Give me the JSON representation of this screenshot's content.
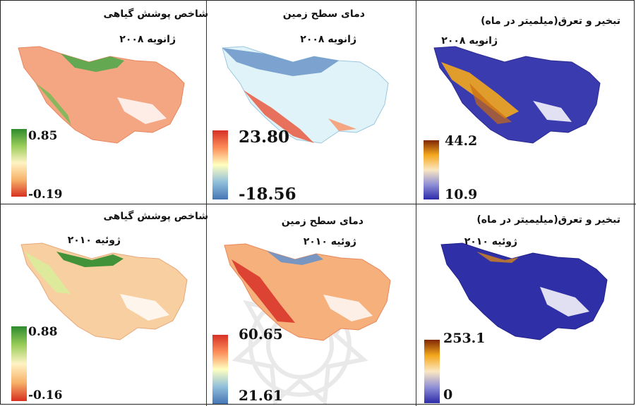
{
  "panels": [
    {
      "title": "شاخص پوشش گیاهی",
      "date": "ژانویه ۲۰۰۸",
      "legend_max": "0.85",
      "legend_min": "-0.19",
      "colormap": "ndvi",
      "variant": "ndvi_jan"
    },
    {
      "title": "دمای سطح زمین",
      "date": "ژانویه ۲۰۰۸",
      "legend_max": "23.80",
      "legend_min": "-18.56",
      "colormap": "lst",
      "variant": "lst_jan"
    },
    {
      "title": "تبخیر و تعرق(میلمیتر در ماه)",
      "date": "ژانویه ۲۰۰۸",
      "legend_max": "44.2",
      "legend_min": "10.9",
      "colormap": "et",
      "variant": "et_jan"
    },
    {
      "title": "شاخص پوشش گیاهی",
      "date": "ژوئیه ۲۰۱۰",
      "legend_max": "0.88",
      "legend_min": "-0.16",
      "colormap": "ndvi",
      "variant": "ndvi_jul"
    },
    {
      "title": "دمای سطح زمین",
      "date": "ژوئیه ۲۰۱۰",
      "legend_max": "60.65",
      "legend_min": "21.61",
      "colormap": "lst",
      "variant": "lst_jul"
    },
    {
      "title": "تبخیر و تعرق(میلیمیتر در ماه)",
      "date": "ژوئیه ۲۰۱۰",
      "legend_max": "253.1",
      "legend_min": "0",
      "colormap": "et",
      "variant": "et_jul"
    }
  ],
  "colors": {
    "ndvi_high": "#2e8b2e",
    "ndvi_mid": "#fff3c4",
    "ndvi_low": "#d7301f",
    "lst_high": "#d73027",
    "lst_mid": "#ffffbf",
    "lst_low": "#4575b4",
    "et_high": "#7f2704",
    "et_mid": "#f4a81d",
    "et_low": "#2c2aa8"
  }
}
